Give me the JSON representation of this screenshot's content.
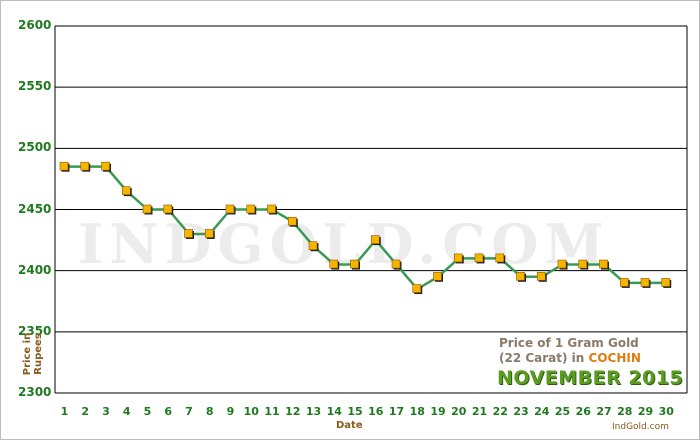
{
  "watermark": "INDGOLD.COM",
  "caption": {
    "line1": "Price of 1 Gram Gold",
    "line2_prefix": "(22 Carat) in",
    "city": "COCHIN",
    "period": "NOVEMBER  2015",
    "site": "IndGold.com"
  },
  "colors": {
    "line": "#3a9a52",
    "marker_fill": "#f4b400",
    "marker_shadow": "#222222",
    "grid": "#000000",
    "tick_labels": "#1f7a1f",
    "axis_titles": "#8b5a1c"
  },
  "chart_data": {
    "type": "line",
    "xlabel": "Date",
    "ylabel": "Price in Rupees",
    "x": [
      1,
      2,
      3,
      4,
      5,
      6,
      7,
      8,
      9,
      10,
      11,
      12,
      13,
      14,
      15,
      16,
      17,
      18,
      19,
      20,
      21,
      22,
      23,
      24,
      25,
      26,
      27,
      28,
      29,
      30
    ],
    "series": [
      {
        "values": [
          2485,
          2485,
          2485,
          2465,
          2450,
          2450,
          2430,
          2430,
          2450,
          2450,
          2450,
          2440,
          2420,
          2405,
          2405,
          2425,
          2405,
          2385,
          2395,
          2410,
          2410,
          2410,
          2395,
          2395,
          2405,
          2405,
          2405,
          2390,
          2390,
          2390
        ]
      }
    ],
    "xticks": [
      "1",
      "2",
      "3",
      "4",
      "5",
      "6",
      "7",
      "8",
      "9",
      "10",
      "11",
      "12",
      "13",
      "14",
      "15",
      "16",
      "17",
      "18",
      "19",
      "20",
      "21",
      "22",
      "23",
      "24",
      "25",
      "26",
      "27",
      "28",
      "29",
      "30"
    ],
    "yticks": [
      "2300",
      "2350",
      "2400",
      "2450",
      "2500",
      "2550",
      "2600"
    ],
    "ylim": [
      2300,
      2600
    ],
    "grid": "horizontal",
    "legend": "none"
  }
}
